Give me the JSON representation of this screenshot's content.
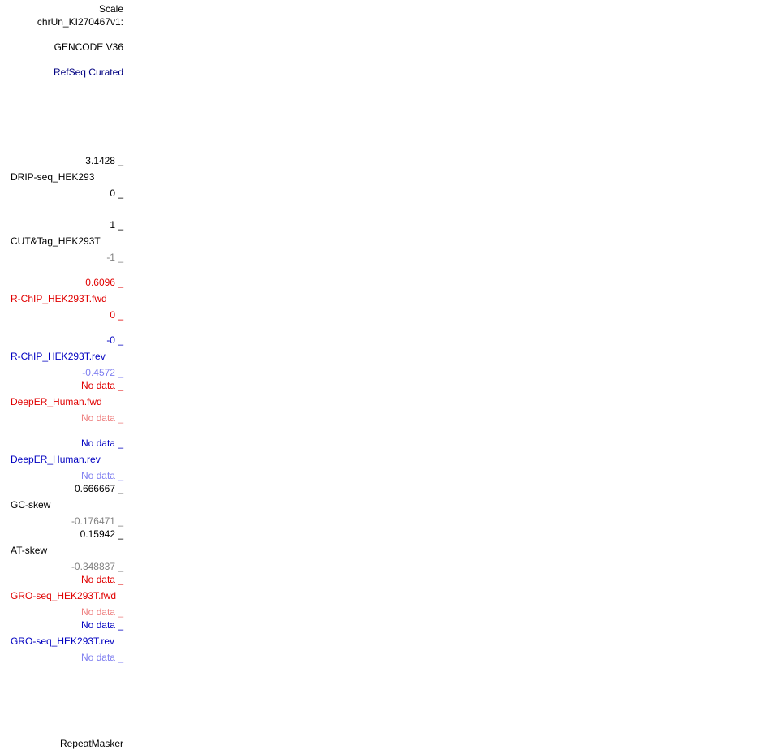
{
  "scale_label": "Scale",
  "chrom_label": "chrUn_KI270467v1:",
  "tracks": {
    "gencode": "GENCODE V36",
    "refseq": "RefSeq Curated",
    "drip": {
      "name": "DRIP-seq_HEK293",
      "max": "3.1428 _",
      "min": "0 _"
    },
    "cuttag": {
      "name": "CUT&Tag_HEK293T",
      "max": "1 _",
      "min": "-1 _"
    },
    "rchip_fwd": {
      "name": "R-ChIP_HEK293T.fwd",
      "max": "0.6096 _",
      "min": "0 _"
    },
    "rchip_rev": {
      "name": "R-ChIP_HEK293T.rev",
      "max": "-0 _",
      "min": "-0.4572 _"
    },
    "deeper_fwd": {
      "name": "DeepER_Human.fwd",
      "max": "No data _",
      "min": "No data _"
    },
    "deeper_rev": {
      "name": "DeepER_Human.rev",
      "max": "No data _",
      "min": "No data _"
    },
    "gc_skew": {
      "name": "GC-skew",
      "max": "0.666667 _",
      "min": "-0.176471 _"
    },
    "at_skew": {
      "name": "AT-skew",
      "max": "0.15942 _",
      "min": "-0.348837 _"
    },
    "gro_fwd": {
      "name": "GRO-seq_HEK293T.fwd",
      "max": "No data _",
      "min": "No data _"
    },
    "gro_rev": {
      "name": "GRO-seq_HEK293T.rev",
      "max": "No data _",
      "min": "No data _"
    },
    "repeatmasker": "RepeatMasker"
  },
  "colors": {
    "black": "#000000",
    "grey": "#808080",
    "navy": "#000080",
    "red": "#e00000",
    "pink": "#ee8080",
    "lavender": "#8080f0",
    "blue": "#0000c0"
  }
}
